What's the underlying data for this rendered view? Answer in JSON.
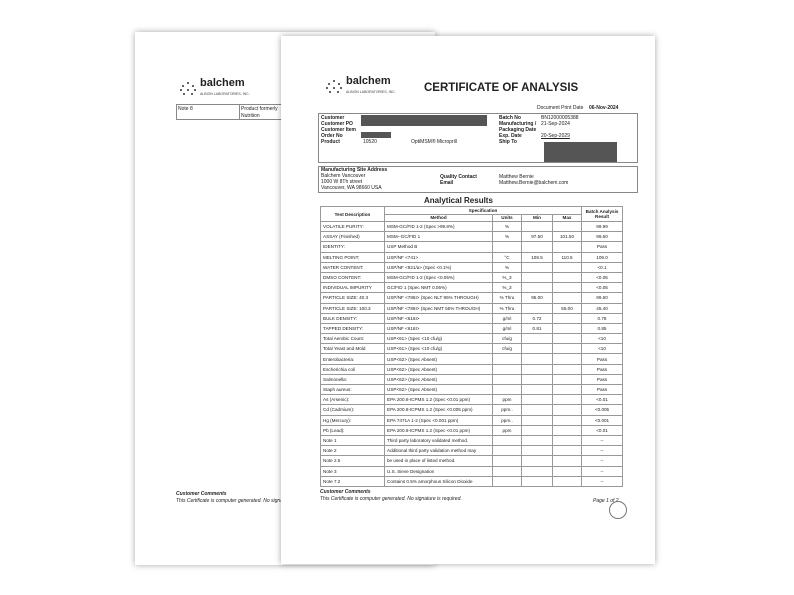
{
  "back_page": {
    "brand": "balchem",
    "brand_sub": "ALBION LABORATORIES, INC.",
    "note_label": "Note 8",
    "note_text_1": "Product formerly",
    "note_text_2": "Nutrition",
    "comments_label": "Customer Comments",
    "comments_text": "This Certificate is computer generated. No signa"
  },
  "front_page": {
    "brand": "balchem",
    "brand_sub": "ALBION LABORATORIES, INC.",
    "title": "CERTIFICATE OF ANALYSIS",
    "print_date_label": "Document Print Date",
    "print_date": "06-Nov-2024",
    "header": {
      "customer": "Customer",
      "customer_po": "Customer PO",
      "customer_item": "Customer Item",
      "order_no": "Order No",
      "product_label": "Product",
      "product_code": "10520",
      "product_name": "OptiMSM® Microprill",
      "batch_label": "Batch No",
      "batch": "BN12000005388",
      "mfg_label_1": "Manufacturing /",
      "mfg_label_2": "Packaging Date",
      "mfg_date": "21-Sep-2024",
      "exp_label": "Exp. Date",
      "exp_date": "20-Sep-2029",
      "ship_label": "Ship To"
    },
    "site": {
      "label": "Manufacturing Site Address",
      "line1": "Balchem Vancouver",
      "line2": "1000 W 8Th street",
      "line3": "Vancouver, WA  98660  USA",
      "qc_label": "Quality Contact",
      "qc_name": "Matthew Bernie",
      "email_label": "Email",
      "email": "Matthew.Bernie@balchem.com"
    },
    "results_title": "Analytical Results",
    "columns": {
      "test": "Test Description",
      "spec": "Specification",
      "method": "Method",
      "units": "Units",
      "min": "Min",
      "max": "Max",
      "result": "Batch Analysis Result"
    },
    "rows": [
      [
        "VOLATILE PURITY:",
        "MSM-GC/FID 1-2 (Spec >99.8%)",
        "%",
        "",
        "",
        "99.99"
      ],
      [
        "ASSAY (Finished)",
        "MSM--GC/FID 1",
        "%",
        "97.50",
        "101.50",
        "99.60"
      ],
      [
        "IDENTITY:",
        "USP Method B",
        "",
        "",
        "",
        "Pass"
      ],
      [
        "MELTING POINT:",
        "USP/NF <741>",
        "°C",
        "108.5",
        "110.5",
        "109.0"
      ],
      [
        "WATER CONTENT:",
        "USP/NF <921/a> (Spec <0.1%)",
        "%",
        "",
        "",
        "<0.1"
      ],
      [
        "DMSO CONTENT:",
        "MSM-GC/FID 1-2 (Spec <0.05%)",
        "%_3",
        "",
        "",
        "<0.05"
      ],
      [
        "INDIVIDUAL IMPURITY",
        "GC/FID 1 (Spec NMT 0.05%)",
        "%_3",
        "",
        "",
        "<0.05"
      ],
      [
        "PARTICLE SIZE: 40.3",
        "USP/NF <786I> (Spec NLT 95% THROUGH)",
        "% Thru",
        "95.00",
        "",
        "99.60"
      ],
      [
        "PARTICLE SIZE: 100.3",
        "USP/NF <786I> (Spec NMT 55% THROUGH)",
        "% Thru",
        "",
        "55.00",
        "45.40"
      ],
      [
        "BULK DENSITY:",
        "USP/NF <616I>",
        "g/ml",
        "0.72",
        "",
        "0.78"
      ],
      [
        "TAPPED DENSITY:",
        "USP/NF <616I>",
        "g/ml",
        "0.81",
        "",
        "0.85"
      ],
      [
        "Total Aerobic Count:",
        "USP<61> (Spec <10 cfu/g)",
        "cfu/g",
        "",
        "",
        "<10"
      ],
      [
        "Total Yeast and Mold",
        "USP<61> (Spec <10 cfu/g)",
        "cfu/g",
        "",
        "",
        "<10"
      ],
      [
        "Enterobacteria:",
        "USP<62> (Spec Absent)",
        "",
        "",
        "",
        "Pass"
      ],
      [
        "Escherichia coli",
        "USP<62> (Spec Absent)",
        "",
        "",
        "",
        "Pass"
      ],
      [
        "Salmonella:",
        "USP<62> (Spec Absent)",
        "",
        "",
        "",
        "Pass"
      ],
      [
        "Staph aureus:",
        "USP<62> (Spec Absent)",
        "",
        "",
        "",
        "Pass"
      ],
      [
        "As (Arsenic):",
        "EPA 200.8-ICPMS 1.2 (Spec <0.01 ppm)",
        "ppm",
        "",
        "",
        "<0.01"
      ],
      [
        "Cd (Cadmium):",
        "EPA 200.8-ICPMS 1.2 (Spec <0.005 ppm)",
        "ppm..",
        "",
        "",
        "<0.005"
      ],
      [
        "Hg (Mercury):",
        "EPA 7471A 1-2 (Spec <0.001 ppm)",
        "ppm..",
        "",
        "",
        "<0.001"
      ],
      [
        "Pb (Lead):",
        "EPA 200.8-ICPMS 1.2 (Spec <0.01 ppm)",
        "ppm",
        "",
        "",
        "<0.01"
      ],
      [
        "Note 1",
        "Third party laboratory validated method.",
        "",
        "",
        "",
        "--"
      ],
      [
        "Note 2",
        "Additional third party validation method may",
        "",
        "",
        "",
        "--"
      ],
      [
        "Note 2.5",
        "be used in place of listed method.",
        "",
        "",
        "",
        "--"
      ],
      [
        "Note 3",
        "U.S. Sieve Designation",
        "",
        "",
        "",
        "--"
      ],
      [
        "Note 7.2",
        "Contains 0.5% amorphous Silicon Dioxide",
        "",
        "",
        "",
        "--"
      ]
    ],
    "comments_label": "Customer Comments",
    "comments_text": "This Certificate is computer generated. No signature is required.",
    "page_label": "Page 1 of 2"
  }
}
